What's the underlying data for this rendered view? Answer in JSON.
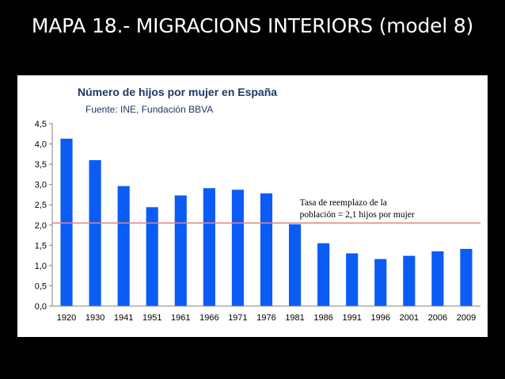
{
  "slide": {
    "title": "MAPA 18.- MIGRACIONS INTERIORS (model 8)"
  },
  "chart_data": {
    "type": "bar",
    "title": "Número de hijos por mujer en España",
    "subtitle": "Fuente: INE, Fundación BBVA",
    "categories": [
      "1920",
      "1930",
      "1941",
      "1951",
      "1961",
      "1966",
      "1971",
      "1976",
      "1981",
      "1986",
      "1991",
      "1996",
      "2001",
      "2006",
      "2009"
    ],
    "values": [
      4.13,
      3.6,
      2.96,
      2.44,
      2.73,
      2.91,
      2.87,
      2.78,
      2.02,
      1.55,
      1.3,
      1.16,
      1.24,
      1.35,
      1.41
    ],
    "ylim": [
      0,
      4.5
    ],
    "yticks": [
      "0,0",
      "0,5",
      "1,0",
      "1,5",
      "2,0",
      "2,5",
      "3,0",
      "3,5",
      "4,0",
      "4,5"
    ],
    "ytick_values": [
      0,
      0.5,
      1.0,
      1.5,
      2.0,
      2.5,
      3.0,
      3.5,
      4.0,
      4.5
    ],
    "reference_line": {
      "value": 2.05,
      "label_line1": "Tasa de reemplazo de la",
      "label_line2": "población = 2,1 hijos por mujer"
    },
    "colors": {
      "bar": "#0a5cf5",
      "reference": "#e08585",
      "title": "#1f3864"
    },
    "grid": false,
    "legend": "none"
  }
}
